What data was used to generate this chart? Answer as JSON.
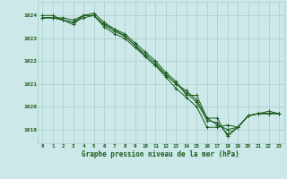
{
  "title": "Graphe pression niveau de la mer (hPa)",
  "bg_color": "#cce8e8",
  "grid_color": "#aacccc",
  "line_color": "#1a5c1a",
  "x_labels": [
    "0",
    "1",
    "2",
    "3",
    "4",
    "5",
    "6",
    "7",
    "8",
    "9",
    "10",
    "11",
    "12",
    "13",
    "14",
    "15",
    "16",
    "17",
    "18",
    "19",
    "20",
    "21",
    "22",
    "23"
  ],
  "ylim": [
    1018.4,
    1024.6
  ],
  "yticks": [
    1019,
    1020,
    1021,
    1022,
    1023,
    1024
  ],
  "series": [
    [
      1024.0,
      1024.0,
      1023.8,
      1023.6,
      1024.0,
      1024.0,
      1023.5,
      1023.2,
      1023.0,
      1022.6,
      1022.2,
      1021.8,
      1021.3,
      1020.8,
      1020.4,
      1020.0,
      1019.1,
      1019.1,
      1019.2,
      1019.1,
      1019.6,
      1019.7,
      1019.7,
      1019.7
    ],
    [
      1023.9,
      1023.9,
      1023.9,
      1023.8,
      1024.0,
      1024.1,
      1023.7,
      1023.4,
      1023.2,
      1022.8,
      1022.4,
      1022.0,
      1021.5,
      1021.1,
      1020.5,
      1020.5,
      1019.5,
      1019.5,
      1018.7,
      1019.1,
      1019.6,
      1019.7,
      1019.7,
      1019.7
    ],
    [
      1023.9,
      1023.9,
      1023.8,
      1023.7,
      1023.9,
      1024.0,
      1023.6,
      1023.3,
      1023.1,
      1022.7,
      1022.3,
      1021.9,
      1021.4,
      1021.0,
      1020.7,
      1020.3,
      1019.5,
      1019.2,
      1019.0,
      1019.1,
      1019.6,
      1019.7,
      1019.8,
      1019.7
    ],
    [
      1023.9,
      1023.9,
      1023.8,
      1023.7,
      1024.0,
      1024.0,
      1023.6,
      1023.4,
      1023.1,
      1022.7,
      1022.2,
      1021.8,
      1021.4,
      1021.0,
      1020.6,
      1020.2,
      1019.4,
      1019.3,
      1018.8,
      1019.1,
      1019.6,
      1019.7,
      1019.7,
      1019.7
    ]
  ]
}
